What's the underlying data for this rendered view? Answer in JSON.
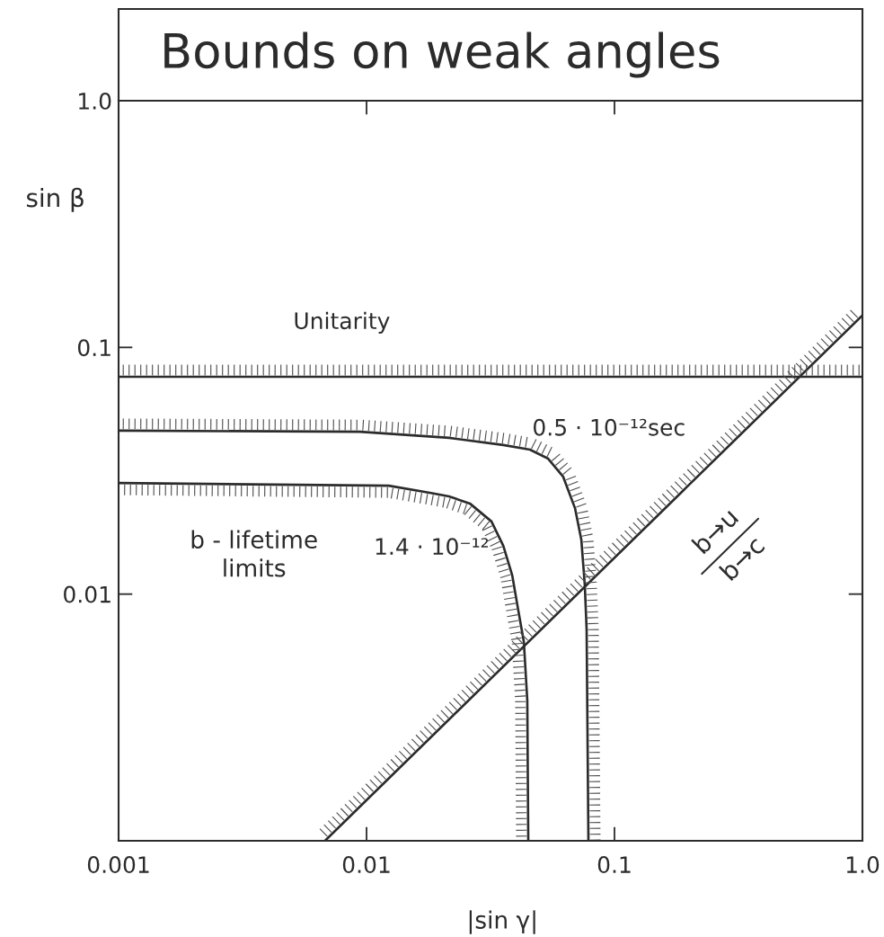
{
  "chart_data": {
    "type": "line",
    "title": "Bounds on weak angles",
    "xlabel": "|sin γ|",
    "ylabel": "sin β",
    "log": "xy",
    "xlim": [
      0.001,
      1
    ],
    "ylim": [
      0.001,
      1
    ],
    "xticks": [
      0.001,
      0.01,
      0.1,
      {
        "value": 1,
        "label": "1.0"
      }
    ],
    "yticks": [
      0.01,
      0.1,
      {
        "value": 1,
        "label": "1.0"
      }
    ],
    "series": [
      {
        "name": "Unitarity",
        "color": "#2b2b2b",
        "x": [
          0.001,
          1
        ],
        "values": [
          0.076,
          0.076
        ]
      },
      {
        "name": "0.5 · 10⁻¹²sec",
        "color": "#2b2b2b",
        "x": [
          0.001,
          0.0094,
          0.0215,
          0.0356,
          0.0456,
          0.054,
          0.0621,
          0.0693,
          0.0735,
          0.0759,
          0.0772,
          0.0785
        ],
        "values": [
          0.046,
          0.0455,
          0.043,
          0.0402,
          0.0385,
          0.0354,
          0.0299,
          0.0223,
          0.0166,
          0.0109,
          0.0072,
          0.001
        ]
      },
      {
        "name": "1.4 · 10⁻¹²",
        "color": "#2b2b2b",
        "x": [
          0.0449,
          0.0445,
          0.0431,
          0.041,
          0.0387,
          0.0356,
          0.0319,
          0.0261,
          0.0215,
          0.0182,
          0.0123,
          0.001
        ],
        "values": [
          0.001,
          0.0037,
          0.0064,
          0.0085,
          0.0119,
          0.0157,
          0.0197,
          0.0233,
          0.0249,
          0.0257,
          0.0275,
          0.0282
        ]
      },
      {
        "name": "b→u\nb→c",
        "color": "#2b2b2b",
        "x": [
          0.0068,
          1
        ],
        "values": [
          0.001,
          0.135
        ]
      }
    ],
    "annotations": [
      "b - lifetime\nlimits"
    ]
  }
}
